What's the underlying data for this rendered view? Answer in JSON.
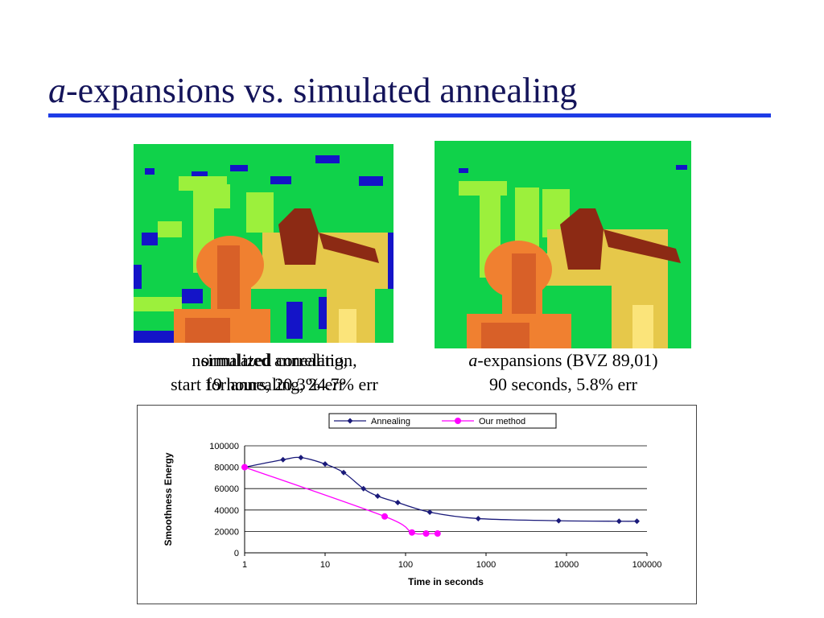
{
  "slide": {
    "title_italic": "a",
    "title_rest": "-expansions vs. simulated annealing"
  },
  "captions": {
    "left_line1_a": "normalized correlation,",
    "left_line1_b": "simulated annealing,",
    "left_line2_a": "start for annealing, 24.7% err",
    "left_line2_b": "19 hours,   20.3% err",
    "right_line1_italic": "a",
    "right_line1_rest": "-expansions (BVZ 89,01)",
    "right_line2": "90 seconds,   5.8% err"
  },
  "colors": {
    "accent_rule": "#1e3ce6",
    "title_text": "#14145a",
    "annealing": "#1a1a7a",
    "our_method": "#ff00ff",
    "bg_green": "#10d24a",
    "light_green": "#9cf03c",
    "yellow": "#e6c84a",
    "orange": "#f08030",
    "brown": "#8c2a14",
    "blue": "#1414c8"
  },
  "chart_data": {
    "type": "line",
    "xscale": "log",
    "xlabel": "Time in seconds",
    "ylabel": "Smoothness Energy",
    "xlim": [
      1,
      100000
    ],
    "ylim": [
      0,
      100000
    ],
    "x_ticks": [
      "1",
      "10",
      "100",
      "1000",
      "10000",
      "100000"
    ],
    "y_ticks": [
      "0",
      "20000",
      "40000",
      "60000",
      "80000",
      "100000"
    ],
    "grid": "horizontal",
    "legend_position": "top-center",
    "series": [
      {
        "name": "Annealing",
        "x": [
          1,
          3,
          5,
          10,
          17,
          30,
          45,
          80,
          200,
          800,
          8000,
          45000,
          75000
        ],
        "y": [
          80000,
          87000,
          89000,
          83000,
          75000,
          60000,
          53000,
          47000,
          38000,
          32000,
          30000,
          29500,
          29500
        ]
      },
      {
        "name": "Our method",
        "x": [
          1,
          55,
          120,
          180,
          250
        ],
        "y": [
          80000,
          34000,
          19000,
          18000,
          18000
        ]
      }
    ]
  }
}
